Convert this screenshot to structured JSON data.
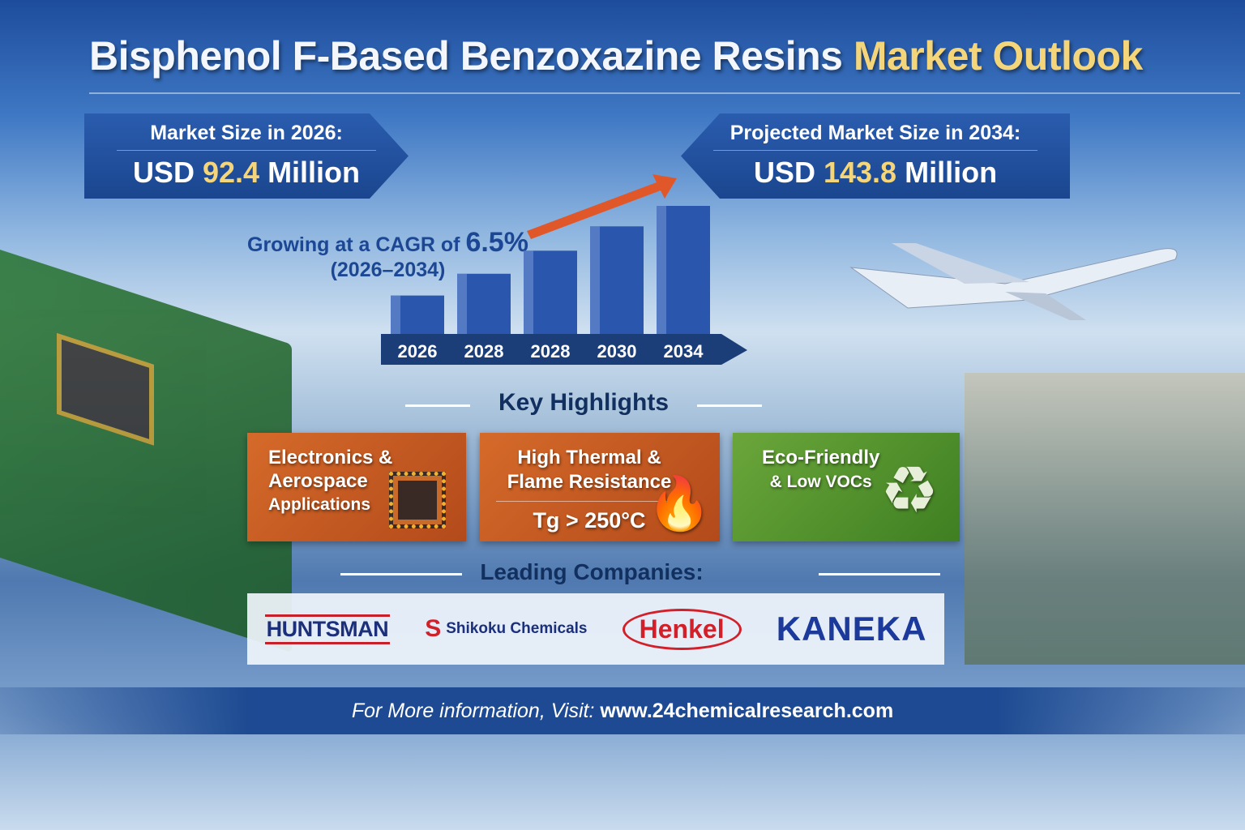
{
  "title": {
    "main": "Bisphenol F-Based Benzoxazine Resins",
    "highlight": "Market Outlook"
  },
  "market_2026": {
    "label": "Market Size in 2026:",
    "prefix": "USD",
    "value": "92.4",
    "suffix": "Million"
  },
  "market_2034": {
    "label": "Projected Market Size in 2034:",
    "prefix": "USD",
    "value": "143.8",
    "suffix": "Million"
  },
  "cagr": {
    "text": "Growing at a CAGR of",
    "value": "6.5%",
    "period": "(2026–2034)"
  },
  "chart_data": {
    "type": "bar",
    "categories": [
      "2026",
      "2028",
      "2028",
      "2030",
      "2034"
    ],
    "values": [
      30,
      47,
      65,
      84,
      100
    ],
    "bar_color": "#2a56ad",
    "arrow_color": "#e0582a",
    "grid": true
  },
  "key_highlights": {
    "heading": "Key Highlights",
    "cards": [
      {
        "line1": "Electronics &",
        "line2": "Aerospace",
        "line3": "Applications",
        "icon": "chip-icon",
        "color": "#c85a24"
      },
      {
        "line1": "High Thermal &",
        "line2": "Flame Resistance",
        "line3": "Tg > 250°C",
        "icon": "flame-icon",
        "color": "#c85a24"
      },
      {
        "line1": "Eco-Friendly",
        "line2": "& Low VOCs",
        "icon": "recycle-leaf-icon",
        "color": "#5a9a30"
      }
    ]
  },
  "companies": {
    "heading": "Leading Companies:",
    "items": [
      "HUNTSMAN",
      "Shikoku Chemicals",
      "Henkel",
      "KANEKA"
    ]
  },
  "footer": {
    "prefix": "For More information, Visit:",
    "url": "www.24chemicalresearch.com"
  }
}
